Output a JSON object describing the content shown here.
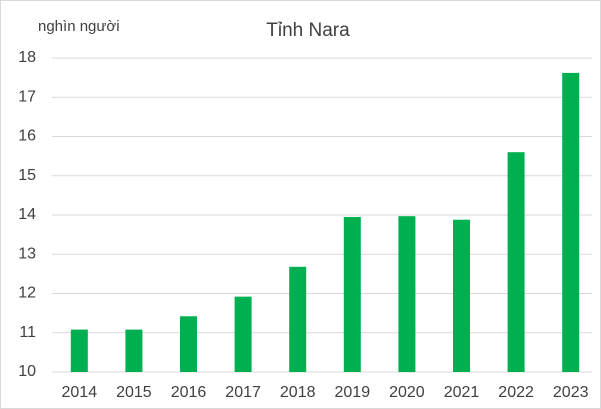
{
  "chart_data": {
    "type": "bar",
    "title": "Tỉnh Nara",
    "y_axis_label": "nghìn người",
    "categories": [
      "2014",
      "2015",
      "2016",
      "2017",
      "2018",
      "2019",
      "2020",
      "2021",
      "2022",
      "2023"
    ],
    "values": [
      11.08,
      11.08,
      11.42,
      11.92,
      12.68,
      13.95,
      13.97,
      13.88,
      15.6,
      17.62
    ],
    "color": "#00b050",
    "ylim": [
      10,
      18
    ],
    "yticks": [
      10,
      11,
      12,
      13,
      14,
      15,
      16,
      17,
      18
    ],
    "grid": true
  }
}
